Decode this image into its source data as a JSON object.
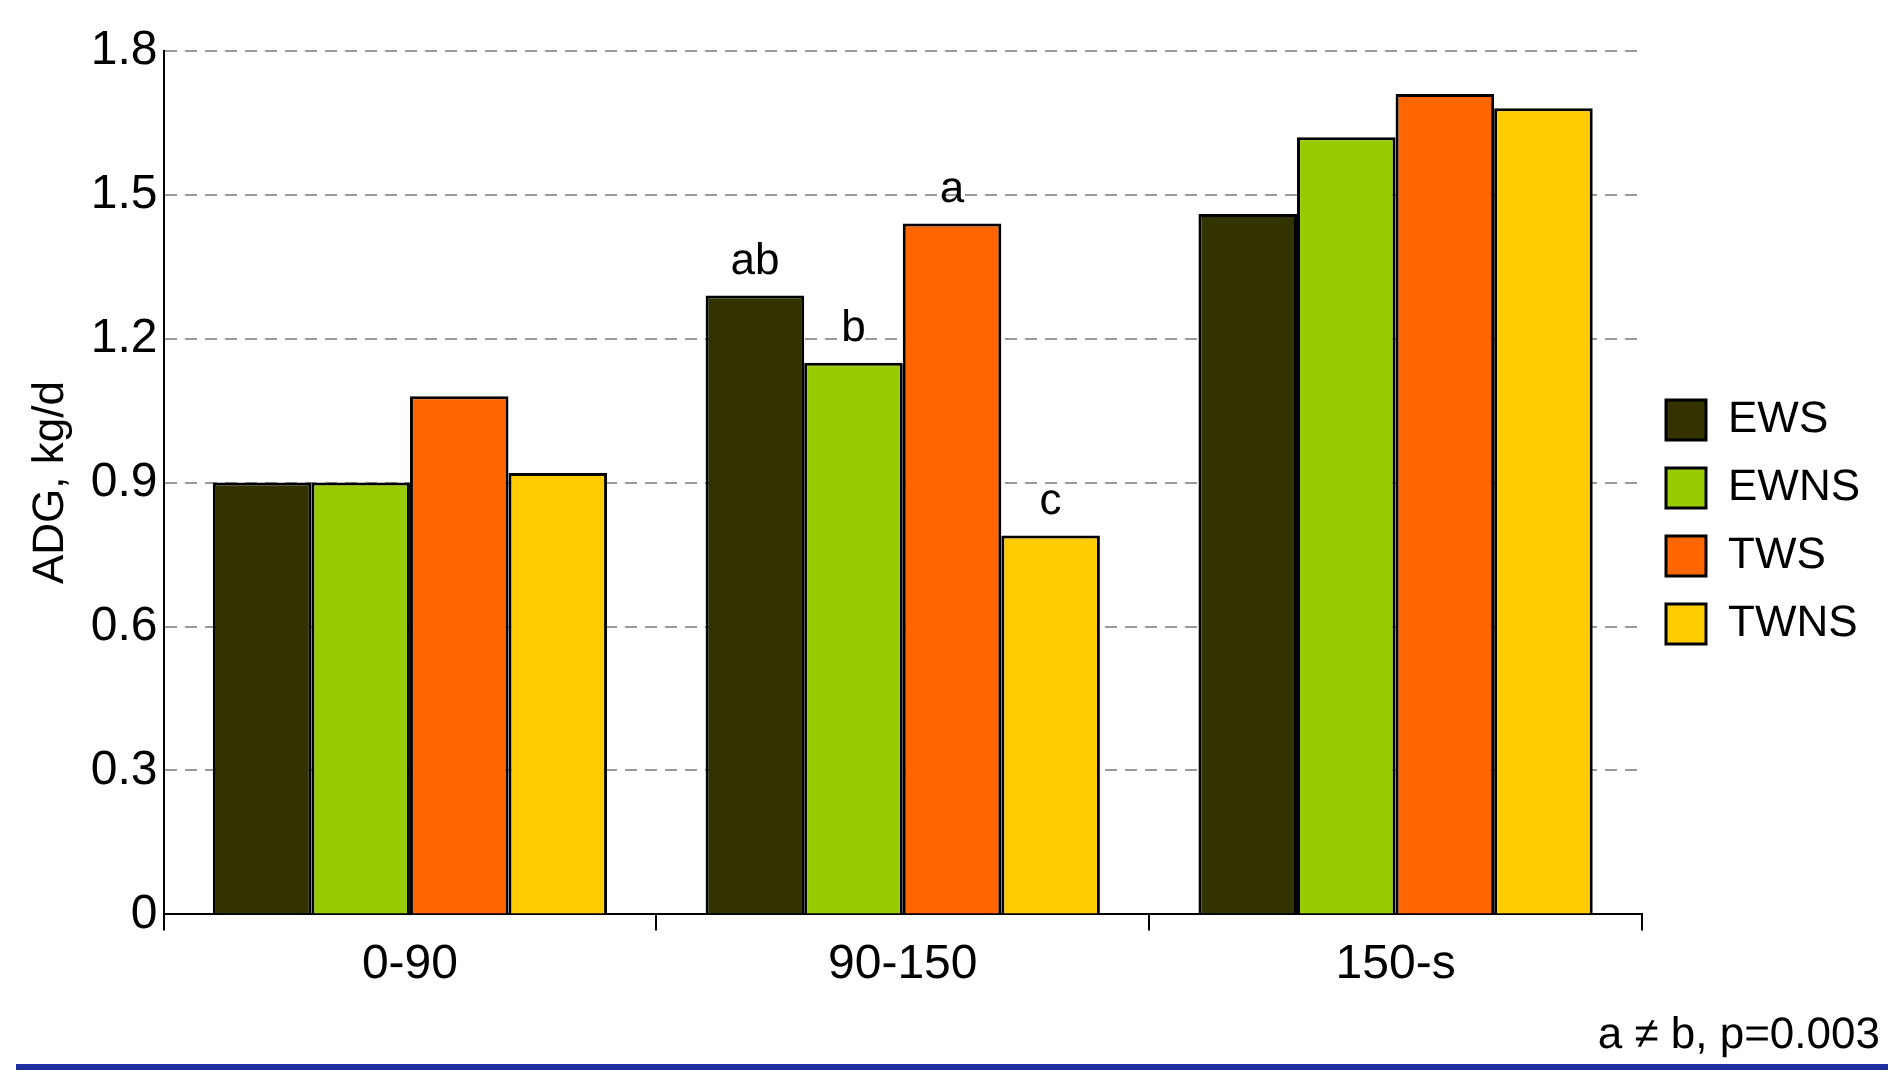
{
  "chart_data": {
    "type": "bar",
    "ylabel": "ADG, kg/d",
    "categories": [
      "0-90",
      "90-150",
      "150-s"
    ],
    "series": [
      {
        "name": "EWS",
        "color": "#333300",
        "values": [
          0.9,
          1.29,
          1.46
        ],
        "value_labels": [
          null,
          "ab",
          null
        ]
      },
      {
        "name": "EWNS",
        "color": "#99cc00",
        "values": [
          0.9,
          1.15,
          1.62
        ],
        "value_labels": [
          null,
          "b",
          null
        ]
      },
      {
        "name": "TWS",
        "color": "#ff6600",
        "values": [
          1.08,
          1.44,
          1.71
        ],
        "value_labels": [
          null,
          "a",
          null
        ]
      },
      {
        "name": "TWNS",
        "color": "#ffcc00",
        "values": [
          0.92,
          0.79,
          1.68
        ],
        "value_labels": [
          null,
          "c",
          null
        ]
      }
    ],
    "ylim": [
      0,
      1.8
    ],
    "yticks": [
      0,
      0.3,
      0.6,
      0.9,
      1.2,
      1.5,
      1.8
    ],
    "grid": "y",
    "legend": "right",
    "annotations": [
      "a ≠ b, p=0.003"
    ]
  }
}
